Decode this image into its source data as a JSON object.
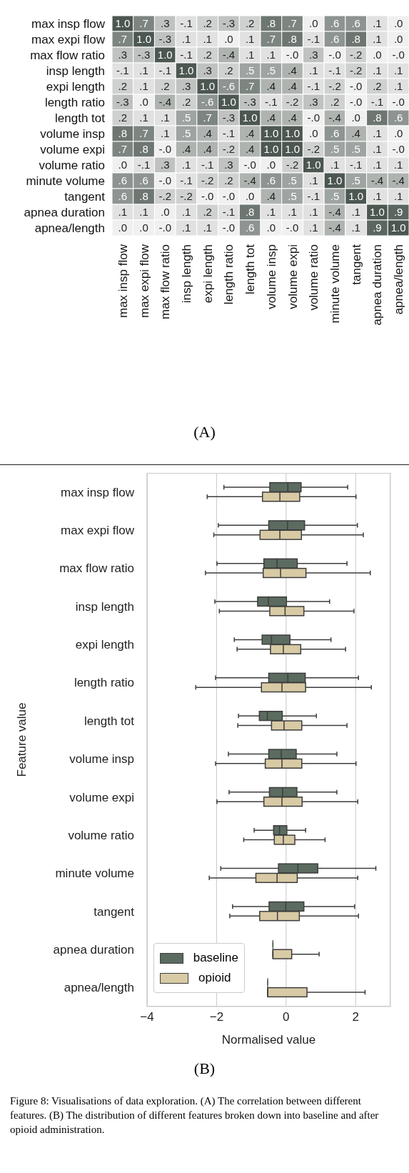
{
  "chart_data": [
    {
      "type": "heatmap",
      "categories": [
        "max insp flow",
        "max expi flow",
        "max flow ratio",
        "insp length",
        "expi length",
        "length ratio",
        "length tot",
        "volume insp",
        "volume expi",
        "volume ratio",
        "minute volume",
        "tangent",
        "apnea duration",
        "apnea/length"
      ],
      "y_categories": [
        "max insp flow",
        "max expi flow",
        "max flow ratio",
        "insp length",
        "expi length",
        "length ratio",
        "length tot",
        "volume insp",
        "volume expi",
        "volume ratio",
        "minute volume",
        "tangent",
        "apnea duration",
        "apnea/length"
      ],
      "cells": [
        [
          1.0,
          0.7,
          0.3,
          -0.1,
          0.2,
          -0.3,
          0.2,
          0.8,
          0.7,
          0.0,
          0.6,
          0.6,
          0.1,
          0.0
        ],
        [
          0.7,
          1.0,
          -0.3,
          0.1,
          0.1,
          0.0,
          0.1,
          0.7,
          0.8,
          -0.1,
          0.6,
          0.8,
          0.1,
          0.0
        ],
        [
          0.3,
          -0.3,
          1.0,
          -0.1,
          0.2,
          -0.4,
          0.1,
          0.1,
          0.0,
          0.3,
          0.0,
          -0.2,
          0.0,
          0.0
        ],
        [
          -0.1,
          0.1,
          -0.1,
          1.0,
          0.3,
          0.2,
          0.5,
          0.5,
          0.4,
          0.1,
          -0.1,
          -0.2,
          0.1,
          0.1
        ],
        [
          0.2,
          0.1,
          0.2,
          0.3,
          1.0,
          -0.6,
          0.7,
          0.4,
          0.4,
          -0.1,
          -0.2,
          0.0,
          0.2,
          0.1
        ],
        [
          -0.3,
          0.0,
          -0.4,
          0.2,
          -0.6,
          1.0,
          -0.3,
          -0.1,
          -0.2,
          0.3,
          0.2,
          0.0,
          -0.1,
          0.0
        ],
        [
          0.2,
          0.1,
          0.1,
          0.5,
          0.7,
          -0.3,
          1.0,
          0.4,
          0.4,
          0.0,
          -0.4,
          0.0,
          0.8,
          0.6
        ],
        [
          0.8,
          0.7,
          0.1,
          0.5,
          0.4,
          -0.1,
          0.4,
          1.0,
          1.0,
          0.0,
          0.6,
          0.4,
          0.1,
          0.0
        ],
        [
          0.7,
          0.8,
          0.0,
          0.4,
          0.4,
          -0.2,
          0.4,
          1.0,
          1.0,
          -0.2,
          0.5,
          0.5,
          0.1,
          0.0
        ],
        [
          0.0,
          -0.1,
          0.3,
          0.1,
          -0.1,
          0.3,
          0.0,
          0.0,
          -0.2,
          1.0,
          0.1,
          -0.1,
          0.1,
          0.1
        ],
        [
          0.6,
          0.6,
          0.0,
          -0.1,
          -0.2,
          0.2,
          -0.4,
          0.6,
          0.5,
          0.1,
          1.0,
          0.5,
          -0.4,
          -0.4
        ],
        [
          0.6,
          0.8,
          -0.2,
          -0.2,
          0.0,
          0.0,
          0.0,
          0.4,
          0.5,
          -0.1,
          0.5,
          1.0,
          0.1,
          0.1
        ],
        [
          0.1,
          0.1,
          0.0,
          0.1,
          0.2,
          -0.1,
          0.8,
          0.1,
          0.1,
          0.1,
          -0.4,
          0.1,
          1.0,
          0.9
        ],
        [
          0.0,
          0.0,
          0.0,
          0.1,
          0.1,
          0.0,
          0.6,
          0.0,
          0.0,
          0.1,
          -0.4,
          0.1,
          0.9,
          1.0
        ]
      ],
      "cell_labels": [
        [
          "1.0",
          ".7",
          ".3",
          "-.1",
          ".2",
          "-.3",
          ".2",
          ".8",
          ".7",
          ".0",
          ".6",
          ".6",
          ".1",
          ".0"
        ],
        [
          ".7",
          "1.0",
          "-.3",
          ".1",
          ".1",
          ".0",
          ".1",
          ".7",
          ".8",
          "-.1",
          ".6",
          ".8",
          ".1",
          ".0"
        ],
        [
          ".3",
          "-.3",
          "1.0",
          "-.1",
          ".2",
          "-.4",
          ".1",
          ".1",
          "-.0",
          ".3",
          "-.0",
          "-.2",
          ".0",
          "-.0"
        ],
        [
          "-.1",
          ".1",
          "-.1",
          "1.0",
          ".3",
          ".2",
          ".5",
          ".5",
          ".4",
          ".1",
          "-.1",
          "-.2",
          ".1",
          ".1"
        ],
        [
          ".2",
          ".1",
          ".2",
          ".3",
          "1.0",
          "-.6",
          ".7",
          ".4",
          ".4",
          "-.1",
          "-.2",
          "-.0",
          ".2",
          ".1"
        ],
        [
          "-.3",
          ".0",
          "-.4",
          ".2",
          "-.6",
          "1.0",
          "-.3",
          "-.1",
          "-.2",
          ".3",
          ".2",
          "-.0",
          "-.1",
          "-.0"
        ],
        [
          ".2",
          ".1",
          ".1",
          ".5",
          ".7",
          "-.3",
          "1.0",
          ".4",
          ".4",
          "-.0",
          "-.4",
          ".0",
          ".8",
          ".6"
        ],
        [
          ".8",
          ".7",
          ".1",
          ".5",
          ".4",
          "-.1",
          ".4",
          "1.0",
          "1.0",
          ".0",
          ".6",
          ".4",
          ".1",
          ".0"
        ],
        [
          ".7",
          ".8",
          "-.0",
          ".4",
          ".4",
          "-.2",
          ".4",
          "1.0",
          "1.0",
          "-.2",
          ".5",
          ".5",
          ".1",
          "-.0"
        ],
        [
          ".0",
          "-.1",
          ".3",
          ".1",
          "-.1",
          ".3",
          "-.0",
          ".0",
          "-.2",
          "1.0",
          ".1",
          "-.1",
          ".1",
          ".1"
        ],
        [
          ".6",
          ".6",
          "-.0",
          "-.1",
          "-.2",
          ".2",
          "-.4",
          ".6",
          ".5",
          ".1",
          "1.0",
          ".5",
          "-.4",
          "-.4"
        ],
        [
          ".6",
          ".8",
          "-.2",
          "-.2",
          "-.0",
          "-.0",
          ".0",
          ".4",
          ".5",
          "-.1",
          ".5",
          "1.0",
          ".1",
          ".1"
        ],
        [
          ".1",
          ".1",
          ".0",
          ".1",
          ".2",
          "-.1",
          ".8",
          ".1",
          ".1",
          ".1",
          "-.4",
          ".1",
          "1.0",
          ".9"
        ],
        [
          ".0",
          ".0",
          "-.0",
          ".1",
          ".1",
          "-.0",
          ".6",
          ".0",
          "-.0",
          ".1",
          "-.4",
          ".1",
          ".9",
          "1.0"
        ]
      ],
      "annotations": [
        "(A)"
      ]
    },
    {
      "type": "box",
      "orientation": "horizontal",
      "categories": [
        "max insp flow",
        "max expi flow",
        "max flow ratio",
        "insp length",
        "expi length",
        "length ratio",
        "length tot",
        "volume insp",
        "volume expi",
        "volume ratio",
        "minute volume",
        "tangent",
        "apnea duration",
        "apnea/length"
      ],
      "series": [
        {
          "name": "baseline",
          "color": "#5b6b60",
          "boxes": [
            {
              "low": -1.79,
              "q1": -0.47,
              "median": 0.05,
              "q3": 0.43,
              "high": 1.77
            },
            {
              "low": -1.95,
              "q1": -0.5,
              "median": 0.04,
              "q3": 0.53,
              "high": 2.05
            },
            {
              "low": -1.99,
              "q1": -0.64,
              "median": -0.26,
              "q3": 0.32,
              "high": 1.75
            },
            {
              "low": -2.05,
              "q1": -0.82,
              "median": -0.51,
              "q3": 0.01,
              "high": 1.25
            },
            {
              "low": -1.49,
              "q1": -0.69,
              "median": -0.42,
              "q3": 0.11,
              "high": 1.29
            },
            {
              "low": -2.03,
              "q1": -0.5,
              "median": 0.05,
              "q3": 0.55,
              "high": 2.08
            },
            {
              "low": -1.37,
              "q1": -0.77,
              "median": -0.54,
              "q3": -0.11,
              "high": 0.87
            },
            {
              "low": -1.66,
              "q1": -0.5,
              "median": -0.14,
              "q3": 0.29,
              "high": 1.46
            },
            {
              "low": -1.64,
              "q1": -0.48,
              "median": -0.1,
              "q3": 0.31,
              "high": 1.46
            },
            {
              "low": -0.92,
              "q1": -0.36,
              "median": -0.19,
              "q3": 0.02,
              "high": 0.56
            },
            {
              "low": -1.88,
              "q1": -0.22,
              "median": 0.34,
              "q3": 0.91,
              "high": 2.58
            },
            {
              "low": -1.54,
              "q1": -0.49,
              "median": -0.01,
              "q3": 0.51,
              "high": 1.97
            },
            {
              "low": -0.38,
              "q1": -0.38,
              "median": -0.38,
              "q3": -0.38,
              "high": -0.38
            },
            {
              "low": -0.53,
              "q1": -0.53,
              "median": -0.53,
              "q3": -0.53,
              "high": -0.53
            }
          ]
        },
        {
          "name": "opioid",
          "color": "#d8caa4",
          "boxes": [
            {
              "low": -2.27,
              "q1": -0.68,
              "median": -0.18,
              "q3": 0.39,
              "high": 2.01
            },
            {
              "low": -2.08,
              "q1": -0.75,
              "median": -0.18,
              "q3": 0.44,
              "high": 2.22
            },
            {
              "low": -2.32,
              "q1": -0.66,
              "median": -0.16,
              "q3": 0.57,
              "high": 2.42
            },
            {
              "low": -1.92,
              "q1": -0.47,
              "median": -0.03,
              "q3": 0.51,
              "high": 1.95
            },
            {
              "low": -1.41,
              "q1": -0.45,
              "median": -0.08,
              "q3": 0.42,
              "high": 1.71
            },
            {
              "low": -2.6,
              "q1": -0.71,
              "median": -0.12,
              "q3": 0.56,
              "high": 2.45
            },
            {
              "low": -1.39,
              "q1": -0.42,
              "median": -0.06,
              "q3": 0.45,
              "high": 1.75
            },
            {
              "low": -2.03,
              "q1": -0.6,
              "median": -0.12,
              "q3": 0.45,
              "high": 2.01
            },
            {
              "low": -1.99,
              "q1": -0.64,
              "median": -0.12,
              "q3": 0.46,
              "high": 2.06
            },
            {
              "low": -1.22,
              "q1": -0.34,
              "median": -0.08,
              "q3": 0.25,
              "high": 1.12
            },
            {
              "low": -2.21,
              "q1": -0.87,
              "median": -0.26,
              "q3": 0.32,
              "high": 2.06
            },
            {
              "low": -1.62,
              "q1": -0.76,
              "median": -0.25,
              "q3": 0.38,
              "high": 2.08
            },
            {
              "low": -0.38,
              "q1": -0.38,
              "median": -0.38,
              "q3": 0.16,
              "high": 0.95
            },
            {
              "low": -0.53,
              "q1": -0.53,
              "median": -0.53,
              "q3": 0.6,
              "high": 2.27
            }
          ]
        }
      ],
      "xlabel": "Normalised value",
      "ylabel": "Feature value",
      "xlim": [
        -4,
        3
      ],
      "xticks": [
        {
          "value": -4,
          "label": "−4"
        },
        {
          "value": -2,
          "label": "−2"
        },
        0,
        2
      ],
      "grid": "x",
      "legend": "bottom left",
      "annotations": [
        "(B)",
        "Figure 8: Visualisations of data exploration. (A) The correlation between different features. (B) The distribution of different features broken down into baseline and after opioid administration."
      ]
    }
  ]
}
